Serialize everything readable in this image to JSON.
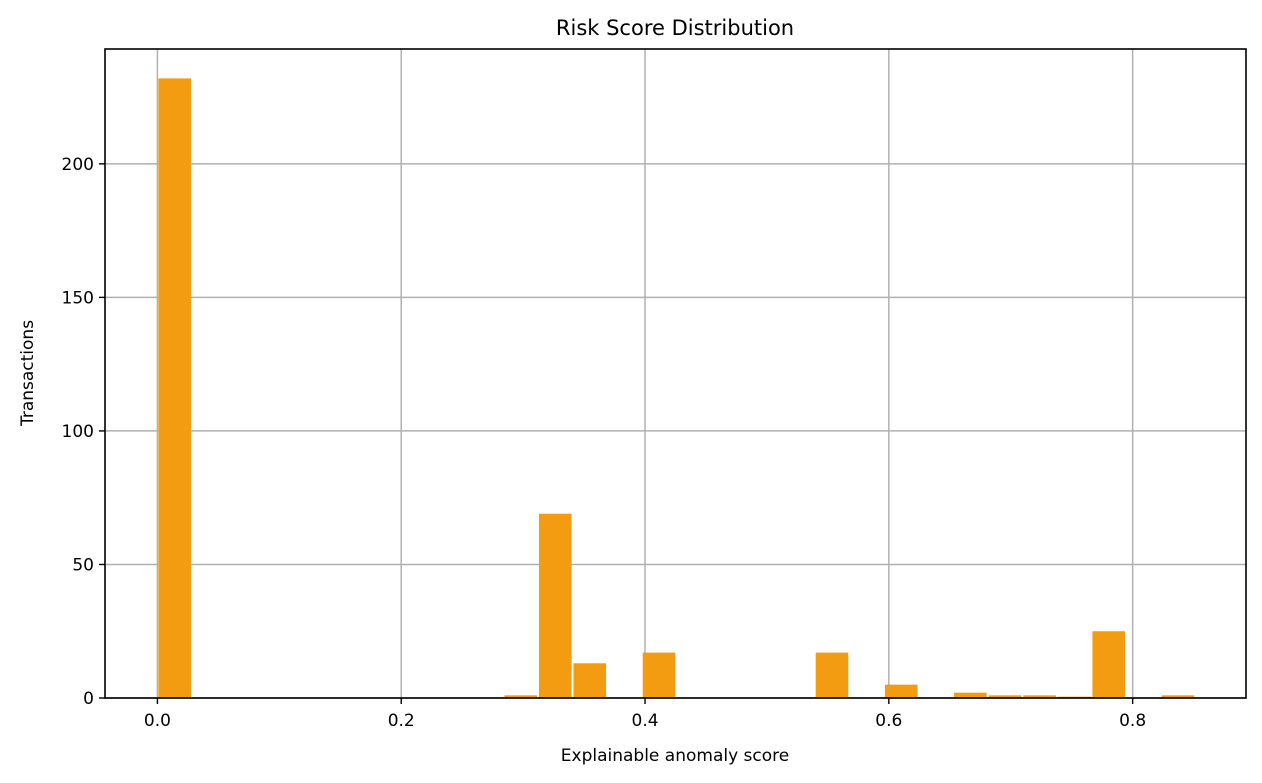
{
  "chart_data": {
    "type": "bar",
    "title": "Risk Score Distribution",
    "xlabel": "Explainable anomaly score",
    "ylabel": "Transactions",
    "xlim": [
      -0.043,
      0.893
    ],
    "ylim": [
      0,
      243
    ],
    "xticks": [
      0.0,
      0.2,
      0.4,
      0.6,
      0.8
    ],
    "xtick_labels": [
      "0.0",
      "0.2",
      "0.4",
      "0.6",
      "0.8"
    ],
    "yticks": [
      0,
      50,
      100,
      150,
      200
    ],
    "ytick_labels": [
      "0",
      "50",
      "100",
      "150",
      "200"
    ],
    "grid": true,
    "bar_color": "#f39c12",
    "bin_width": 0.02838,
    "bins": [
      {
        "x_start": 0.0,
        "count": 232
      },
      {
        "x_start": 0.2838,
        "count": 1
      },
      {
        "x_start": 0.3122,
        "count": 69
      },
      {
        "x_start": 0.3405,
        "count": 13
      },
      {
        "x_start": 0.3973,
        "count": 17
      },
      {
        "x_start": 0.5392,
        "count": 17
      },
      {
        "x_start": 0.596,
        "count": 5
      },
      {
        "x_start": 0.6527,
        "count": 2
      },
      {
        "x_start": 0.6811,
        "count": 1
      },
      {
        "x_start": 0.7095,
        "count": 1
      },
      {
        "x_start": 0.7379,
        "count": 0.5
      },
      {
        "x_start": 0.7662,
        "count": 25
      },
      {
        "x_start": 0.823,
        "count": 1
      }
    ]
  }
}
